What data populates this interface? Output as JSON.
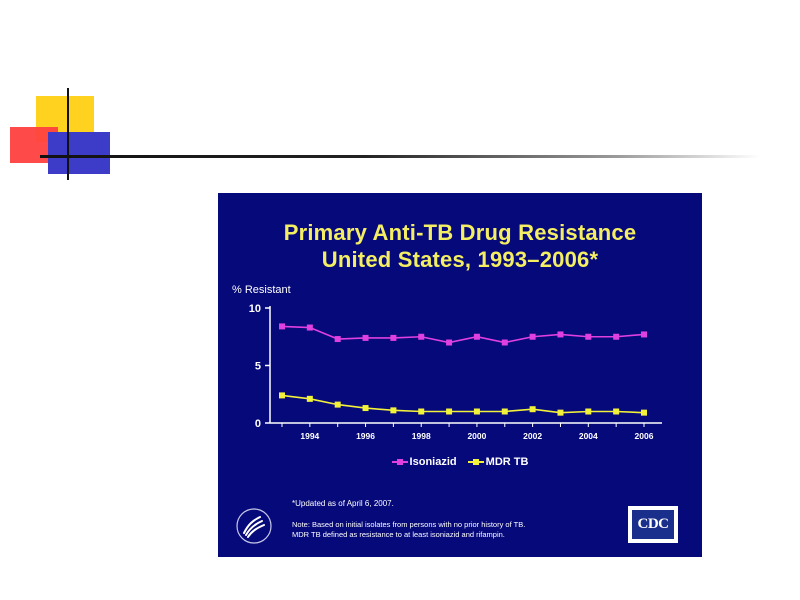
{
  "slide": {
    "colors": {
      "yellow": "#ffd21f",
      "red": "#ff4040",
      "blue": "#3c3cc8",
      "panel": "#05097a"
    }
  },
  "chart_data": {
    "type": "line",
    "title": [
      "Primary Anti-TB Drug Resistance",
      "United States, 1993–2006*"
    ],
    "ylabel": "% Resistant",
    "xlabel": "",
    "ylim": [
      0,
      10
    ],
    "yticks": [
      0,
      5,
      10
    ],
    "x": [
      1993,
      1994,
      1995,
      1996,
      1997,
      1998,
      1999,
      2000,
      2001,
      2002,
      2003,
      2004,
      2005,
      2006
    ],
    "xtick_labels": [
      "1994",
      "1996",
      "1998",
      "2000",
      "2002",
      "2004",
      "2006"
    ],
    "grid": false,
    "legend_position": "bottom",
    "series": [
      {
        "name": "Isoniazid",
        "color": "#e040e0",
        "values": [
          8.4,
          8.3,
          7.3,
          7.4,
          7.4,
          7.5,
          7.0,
          7.5,
          7.0,
          7.5,
          7.7,
          7.5,
          7.5,
          7.7
        ]
      },
      {
        "name": "MDR TB",
        "color": "#f2f23a",
        "values": [
          2.4,
          2.1,
          1.6,
          1.3,
          1.1,
          1.0,
          1.0,
          1.0,
          1.0,
          1.2,
          0.9,
          1.0,
          1.0,
          0.9
        ]
      }
    ],
    "footnote": "*Updated as of April 6, 2007.",
    "note_lines": [
      "Note: Based on initial isolates from persons with no prior history of TB.",
      "MDR TB defined as resistance to at least isoniazid and rifampin."
    ]
  },
  "logos": {
    "hhs_icon": "hhs-eagle-icon",
    "cdc_label": "CDC"
  }
}
